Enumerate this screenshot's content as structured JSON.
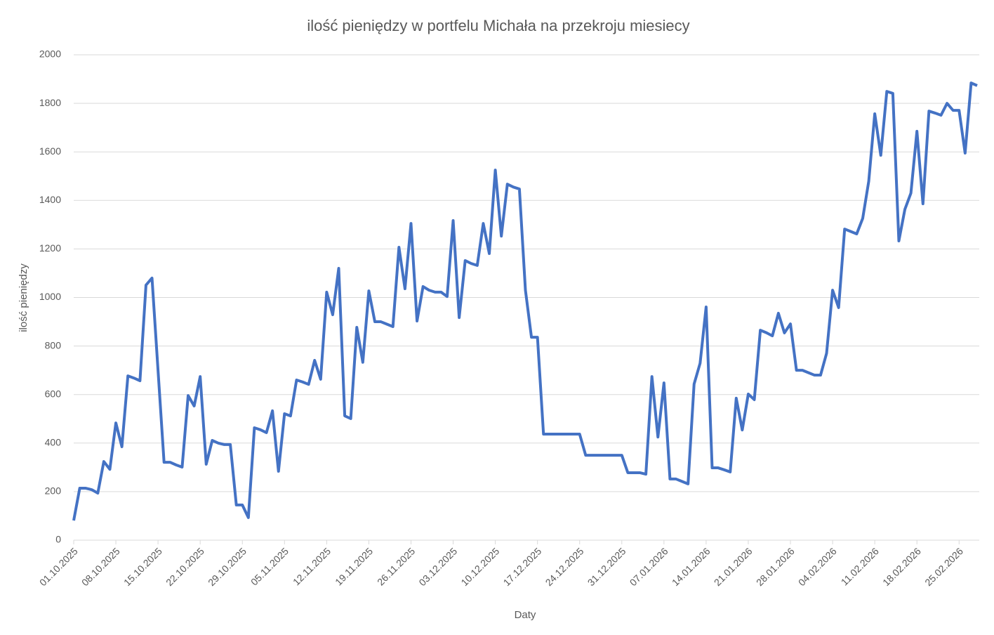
{
  "chart_data": {
    "type": "line",
    "title": "ilość pieniędzy w portfelu Michała na przekroju miesiecy",
    "x_label": "Daty",
    "y_label": "ilość pieniędzy",
    "categories": [
      "01.10.2025",
      null,
      null,
      null,
      null,
      null,
      null,
      "08.10.2025",
      null,
      null,
      null,
      null,
      null,
      null,
      "15.10.2025",
      null,
      null,
      null,
      null,
      null,
      null,
      "22.10.2025",
      null,
      null,
      null,
      null,
      null,
      null,
      "29.10.2025",
      null,
      null,
      null,
      null,
      null,
      null,
      "05.11.2025",
      null,
      null,
      null,
      null,
      null,
      null,
      "12.11.2025",
      null,
      null,
      null,
      null,
      null,
      null,
      "19.11.2025",
      null,
      null,
      null,
      null,
      null,
      null,
      "26.11.2025",
      null,
      null,
      null,
      null,
      null,
      null,
      "03.12.2025",
      null,
      null,
      null,
      null,
      null,
      null,
      "10.12.2025",
      null,
      null,
      null,
      null,
      null,
      null,
      "17.12.2025",
      null,
      null,
      null,
      null,
      null,
      null,
      "24.12.2025",
      null,
      null,
      null,
      null,
      null,
      null,
      "31.12.2025",
      null,
      null,
      null,
      null,
      null,
      null,
      "07.01.2026",
      null,
      null,
      null,
      null,
      null,
      null,
      "14.01.2026",
      null,
      null,
      null,
      null,
      null,
      null,
      "21.01.2026",
      null,
      null,
      null,
      null,
      null,
      null,
      "28.01.2026",
      null,
      null,
      null,
      null,
      null,
      null,
      "04.02.2026",
      null,
      null,
      null,
      null,
      null,
      null,
      "11.02.2026",
      null,
      null,
      null,
      null,
      null,
      null,
      "18.02.2026",
      null,
      null,
      null,
      null,
      null,
      null,
      "25.02.2026",
      null,
      null,
      null
    ],
    "values": [
      81,
      214,
      214,
      208,
      194,
      324,
      292,
      483,
      385,
      677,
      668,
      657,
      1051,
      1080,
      700,
      321,
      321,
      310,
      301,
      596,
      553,
      674,
      313,
      411,
      400,
      394,
      394,
      145,
      145,
      93,
      463,
      455,
      443,
      533,
      284,
      521,
      512,
      660,
      652,
      642,
      741,
      663,
      1022,
      929,
      1120,
      512,
      501,
      877,
      733,
      1027,
      900,
      900,
      890,
      880,
      1207,
      1036,
      1305,
      903,
      1045,
      1030,
      1022,
      1022,
      1004,
      1317,
      917,
      1152,
      1140,
      1132,
      1305,
      1181,
      1525,
      1253,
      1467,
      1455,
      1447,
      1030,
      836,
      836,
      437,
      437,
      437,
      437,
      437,
      437,
      437,
      350,
      350,
      350,
      350,
      350,
      350,
      350,
      278,
      278,
      278,
      272,
      674,
      425,
      648,
      252,
      252,
      242,
      232,
      643,
      729,
      961,
      298,
      298,
      290,
      281,
      585,
      454,
      602,
      579,
      865,
      855,
      842,
      935,
      854,
      891,
      700,
      700,
      690,
      680,
      680,
      770,
      1030,
      958,
      1282,
      1272,
      1262,
      1326,
      1479,
      1757,
      1586,
      1849,
      1841,
      1233,
      1363,
      1430,
      1685,
      1386,
      1768,
      1760,
      1751,
      1800,
      1771,
      1771,
      1595,
      1884,
      1873
    ],
    "color": "#4472c4",
    "ylim": [
      0,
      2000
    ],
    "yticks": [
      0,
      200,
      400,
      600,
      800,
      1000,
      1200,
      1400,
      1600,
      1800,
      2000
    ],
    "grid": true
  }
}
